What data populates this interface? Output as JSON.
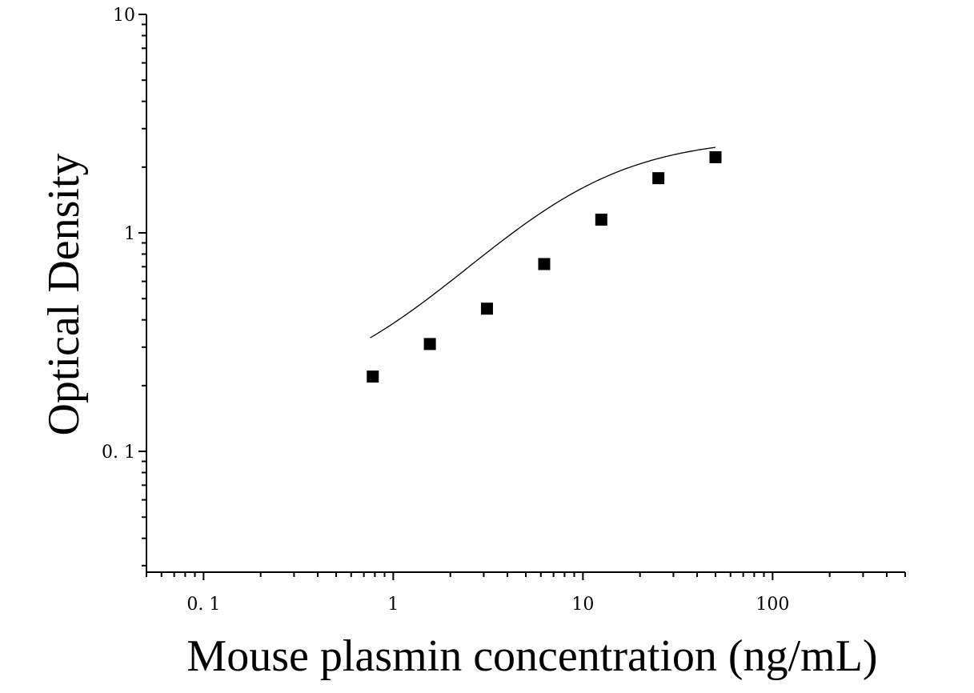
{
  "chart_data": {
    "type": "scatter",
    "xlabel": "Mouse plasmin concentration (ng/mL)",
    "ylabel": "Optical Density",
    "x_scale": "log",
    "y_scale": "log",
    "xlim": [
      0.05,
      500
    ],
    "ylim": [
      0.028,
      10
    ],
    "x_ticks": [
      {
        "value": 0.1,
        "label": "0. 1"
      },
      {
        "value": 1,
        "label": "1"
      },
      {
        "value": 10,
        "label": "10"
      },
      {
        "value": 100,
        "label": "100"
      }
    ],
    "y_ticks": [
      {
        "value": 0.1,
        "label": "0. 1"
      },
      {
        "value": 1,
        "label": "1"
      },
      {
        "value": 10,
        "label": "10"
      }
    ],
    "grid": false,
    "series": [
      {
        "marker": "square",
        "color": "#000000",
        "points": [
          {
            "x": 0.78,
            "y": 0.22
          },
          {
            "x": 1.56,
            "y": 0.31
          },
          {
            "x": 3.12,
            "y": 0.45
          },
          {
            "x": 6.25,
            "y": 0.72
          },
          {
            "x": 12.5,
            "y": 1.15
          },
          {
            "x": 25,
            "y": 1.78
          },
          {
            "x": 50,
            "y": 2.22
          }
        ]
      }
    ],
    "fit_curve": {
      "type": "4PL",
      "color": "#000000"
    }
  }
}
